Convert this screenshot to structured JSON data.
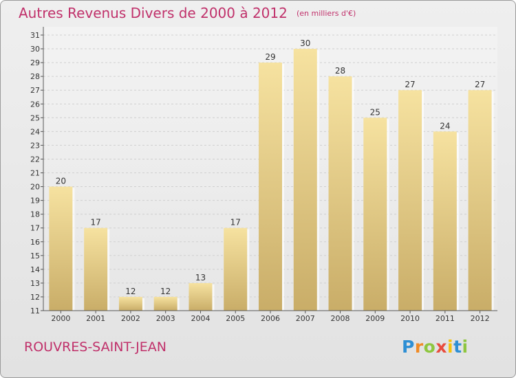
{
  "title": "Autres Revenus Divers de 2000 à 2012",
  "unit": "(en milliers d'€)",
  "place": "ROUVRES-SAINT-JEAN",
  "logo": {
    "letters": [
      "P",
      "r",
      "o",
      "x",
      "i",
      "t",
      "i"
    ],
    "colors": [
      "#2e8fd4",
      "#f08a24",
      "#8ec63f",
      "#e84c3d",
      "#f4c20d",
      "#2e8fd4",
      "#8ec63f"
    ]
  },
  "colors": {
    "title": "#c0306a",
    "bar_light": "#f6e2a0",
    "bar_dark": "#c9ad68"
  },
  "chart_data": {
    "type": "bar",
    "categories": [
      "2000",
      "2001",
      "2002",
      "2003",
      "2004",
      "2005",
      "2006",
      "2007",
      "2008",
      "2009",
      "2010",
      "2011",
      "2012"
    ],
    "values": [
      20,
      17,
      12,
      12,
      13,
      17,
      29,
      30,
      28,
      25,
      27,
      24,
      27
    ],
    "ylim": [
      11,
      31
    ],
    "yticks": [
      11,
      12,
      13,
      14,
      15,
      16,
      17,
      18,
      19,
      20,
      21,
      22,
      23,
      24,
      25,
      26,
      27,
      28,
      29,
      30,
      31
    ],
    "grid": true,
    "xlabel": "",
    "ylabel": ""
  }
}
